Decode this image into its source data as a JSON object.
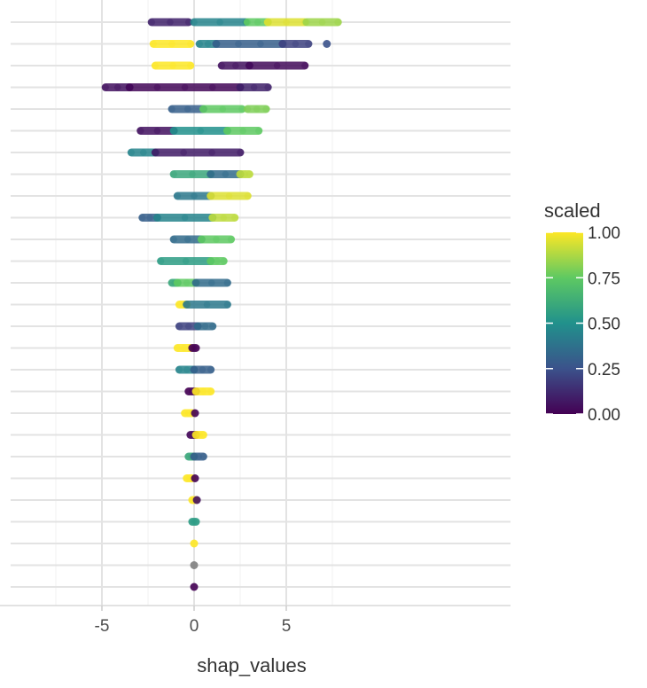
{
  "chart_data": {
    "type": "scatter",
    "xlabel": "shap_values",
    "ylabel": "",
    "xlim": [
      -5.2,
      8.6
    ],
    "x_ticks": [
      -5,
      0,
      5
    ],
    "x_tick_labels": [
      "-5",
      "0",
      "5"
    ],
    "grid": true,
    "colorbar": {
      "title": "scaled",
      "range": [
        0,
        1
      ],
      "ticks": [
        1.0,
        0.75,
        0.5,
        0.25,
        0.0
      ],
      "tick_labels": [
        "1.00",
        "0.75",
        "0.50",
        "0.25",
        "0.00"
      ],
      "palette": [
        "#440154",
        "#3b528b",
        "#21918c",
        "#5ec962",
        "#fde725"
      ],
      "position": "right"
    },
    "rows": [
      {
        "segments": [
          [
            -2.3,
            -0.3,
            0.1
          ],
          [
            0.0,
            2.8,
            0.45
          ],
          [
            2.9,
            4.0,
            0.75
          ],
          [
            4.0,
            6.0,
            0.95
          ],
          [
            6.1,
            7.8,
            0.85
          ]
        ]
      },
      {
        "segments": [
          [
            -2.2,
            -0.2,
            1.0
          ],
          [
            0.3,
            1.2,
            0.45
          ],
          [
            1.2,
            4.8,
            0.3
          ],
          [
            4.8,
            6.2,
            0.2
          ],
          [
            7.2,
            7.2,
            0.25
          ]
        ]
      },
      {
        "segments": [
          [
            -2.1,
            -0.2,
            1.0
          ],
          [
            1.5,
            3.0,
            0.05
          ],
          [
            3.0,
            6.0,
            0.03
          ]
        ]
      },
      {
        "segments": [
          [
            -4.8,
            -3.5,
            0.05
          ],
          [
            -3.5,
            2.5,
            0.02
          ],
          [
            2.5,
            4.0,
            0.1
          ]
        ]
      },
      {
        "segments": [
          [
            -1.2,
            0.5,
            0.3
          ],
          [
            0.5,
            2.6,
            0.75
          ],
          [
            2.9,
            3.9,
            0.8
          ]
        ]
      },
      {
        "segments": [
          [
            -2.9,
            -1.1,
            0.05
          ],
          [
            -1.1,
            1.8,
            0.5
          ],
          [
            1.8,
            3.5,
            0.75
          ]
        ]
      },
      {
        "segments": [
          [
            -3.4,
            -2.1,
            0.45
          ],
          [
            -2.1,
            2.5,
            0.08
          ]
        ]
      },
      {
        "segments": [
          [
            -1.1,
            0.9,
            0.6
          ],
          [
            0.9,
            2.5,
            0.35
          ],
          [
            2.5,
            3.0,
            0.9
          ]
        ]
      },
      {
        "segments": [
          [
            -0.9,
            0.9,
            0.4
          ],
          [
            0.9,
            2.9,
            0.95
          ]
        ]
      },
      {
        "segments": [
          [
            -2.8,
            -2.0,
            0.3
          ],
          [
            -2.0,
            1.0,
            0.45
          ],
          [
            1.0,
            2.2,
            0.9
          ]
        ]
      },
      {
        "segments": [
          [
            -1.1,
            0.4,
            0.35
          ],
          [
            0.4,
            2.0,
            0.75
          ]
        ]
      },
      {
        "segments": [
          [
            -1.8,
            0.9,
            0.55
          ],
          [
            0.9,
            1.6,
            0.75
          ]
        ]
      },
      {
        "segments": [
          [
            -1.2,
            -0.9,
            0.6
          ],
          [
            -0.9,
            0.1,
            0.75
          ],
          [
            0.1,
            1.8,
            0.35
          ]
        ]
      },
      {
        "segments": [
          [
            -0.8,
            -0.4,
            1.0
          ],
          [
            -0.4,
            1.8,
            0.4
          ]
        ]
      },
      {
        "segments": [
          [
            -0.8,
            0.2,
            0.2
          ],
          [
            0.2,
            1.0,
            0.35
          ]
        ]
      },
      {
        "segments": [
          [
            -0.9,
            -0.2,
            1.0
          ],
          [
            -0.1,
            0.1,
            0.0
          ]
        ]
      },
      {
        "segments": [
          [
            -0.8,
            0.0,
            0.45
          ],
          [
            0.0,
            0.9,
            0.3
          ]
        ]
      },
      {
        "segments": [
          [
            -0.3,
            0.1,
            0.0
          ],
          [
            0.1,
            0.9,
            1.0
          ]
        ]
      },
      {
        "segments": [
          [
            -0.5,
            -0.1,
            1.0
          ],
          [
            0.0,
            0.1,
            0.0
          ]
        ]
      },
      {
        "segments": [
          [
            -0.2,
            0.1,
            0.02
          ],
          [
            0.1,
            0.5,
            1.0
          ]
        ]
      },
      {
        "segments": [
          [
            -0.3,
            0.0,
            0.6
          ],
          [
            0.0,
            0.5,
            0.3
          ]
        ]
      },
      {
        "segments": [
          [
            -0.4,
            -0.1,
            1.0
          ],
          [
            0.0,
            0.1,
            0.0
          ]
        ]
      },
      {
        "segments": [
          [
            -0.1,
            0.1,
            1.0
          ],
          [
            0.1,
            0.2,
            0.05
          ]
        ]
      },
      {
        "segments": [
          [
            -0.1,
            0.1,
            0.55
          ]
        ]
      },
      {
        "segments": [
          [
            0.0,
            0.0,
            1.0
          ]
        ]
      },
      {
        "segments": [
          [
            0.0,
            0.0,
            null
          ]
        ]
      },
      {
        "segments": [
          [
            0.0,
            0.0,
            0.0
          ]
        ]
      }
    ]
  }
}
